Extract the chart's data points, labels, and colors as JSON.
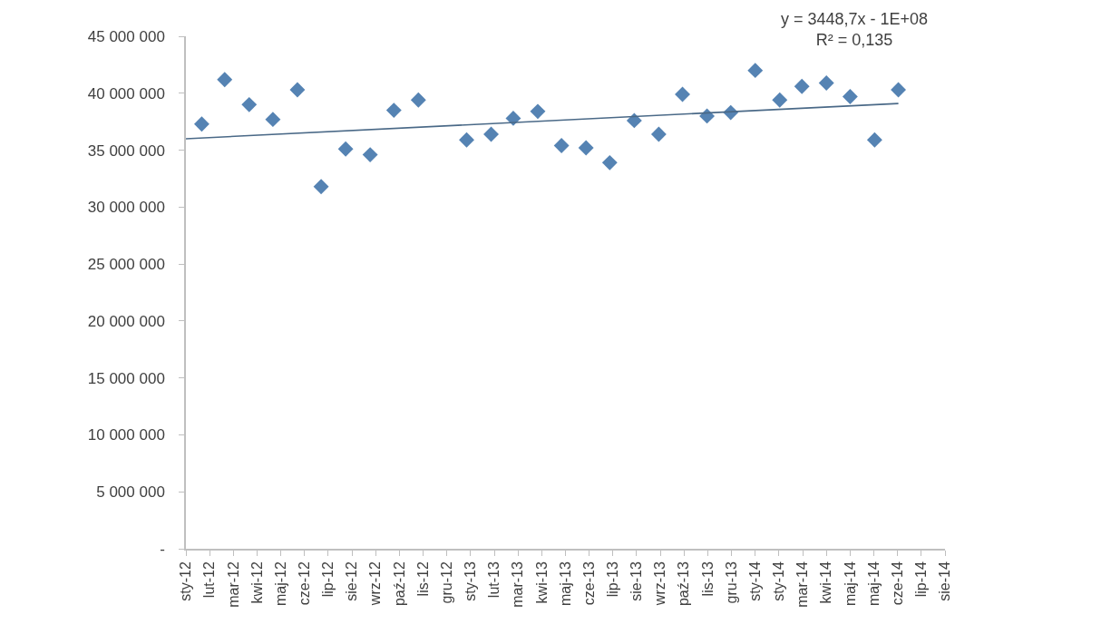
{
  "chart_data": {
    "type": "scatter",
    "marker": "diamond",
    "grid": false,
    "annotations": [
      "y = 3448,7x - 1E+08\nR² = 0,135"
    ],
    "xlim": [
      "2012-01-12",
      "2014-08-29"
    ],
    "xticks": [
      {
        "value": "2012-01-12",
        "label": "sty-12"
      },
      {
        "value": "2012-02-11",
        "label": "lut-12"
      },
      {
        "value": "2012-03-12",
        "label": "mar-12"
      },
      {
        "value": "2012-04-11",
        "label": "kwi-12"
      },
      {
        "value": "2012-05-11",
        "label": "maj-12"
      },
      {
        "value": "2012-06-10",
        "label": "cze-12"
      },
      {
        "value": "2012-07-10",
        "label": "lip-12"
      },
      {
        "value": "2012-08-09",
        "label": "sie-12"
      },
      {
        "value": "2012-09-08",
        "label": "wrz-12"
      },
      {
        "value": "2012-10-08",
        "label": "paź-12"
      },
      {
        "value": "2012-11-07",
        "label": "lis-12"
      },
      {
        "value": "2012-12-07",
        "label": "gru-12"
      },
      {
        "value": "2013-01-06",
        "label": "sty-13"
      },
      {
        "value": "2013-02-05",
        "label": "lut-13"
      },
      {
        "value": "2013-03-07",
        "label": "mar-13"
      },
      {
        "value": "2013-04-06",
        "label": "kwi-13"
      },
      {
        "value": "2013-05-06",
        "label": "maj-13"
      },
      {
        "value": "2013-06-05",
        "label": "cze-13"
      },
      {
        "value": "2013-07-05",
        "label": "lip-13"
      },
      {
        "value": "2013-08-04",
        "label": "sie-13"
      },
      {
        "value": "2013-09-03",
        "label": "wrz-13"
      },
      {
        "value": "2013-10-03",
        "label": "paź-13"
      },
      {
        "value": "2013-11-02",
        "label": "lis-13"
      },
      {
        "value": "2013-12-02",
        "label": "gru-13"
      },
      {
        "value": "2014-01-01",
        "label": "sty-14"
      },
      {
        "value": "2014-01-31",
        "label": "sty-14"
      },
      {
        "value": "2014-03-02",
        "label": "mar-14"
      },
      {
        "value": "2014-04-01",
        "label": "kwi-14"
      },
      {
        "value": "2014-05-01",
        "label": "maj-14"
      },
      {
        "value": "2014-05-31",
        "label": "maj-14"
      },
      {
        "value": "2014-06-30",
        "label": "cze-14"
      },
      {
        "value": "2014-07-30",
        "label": "lip-14"
      },
      {
        "value": "2014-08-29",
        "label": "sie-14"
      }
    ],
    "ylim": [
      0,
      45000000
    ],
    "yticks": [
      {
        "value": 0,
        "label": "-"
      },
      {
        "value": 5000000,
        "label": "5 000 000"
      },
      {
        "value": 10000000,
        "label": "10 000 000"
      },
      {
        "value": 15000000,
        "label": "15 000 000"
      },
      {
        "value": 20000000,
        "label": "20 000 000"
      },
      {
        "value": 25000000,
        "label": "25 000 000"
      },
      {
        "value": 30000000,
        "label": "30 000 000"
      },
      {
        "value": 35000000,
        "label": "35 000 000"
      },
      {
        "value": 40000000,
        "label": "40 000 000"
      },
      {
        "value": 45000000,
        "label": "45 000 000"
      }
    ],
    "series": [
      {
        "color": "#5583b3",
        "x": [
          "2012-02-01",
          "2012-03-01",
          "2012-04-01",
          "2012-05-01",
          "2012-06-01",
          "2012-07-01",
          "2012-08-01",
          "2012-09-01",
          "2012-10-01",
          "2012-11-01",
          "2013-01-01",
          "2013-02-01",
          "2013-03-01",
          "2013-04-01",
          "2013-05-01",
          "2013-06-01",
          "2013-07-01",
          "2013-08-01",
          "2013-09-01",
          "2013-10-01",
          "2013-11-01",
          "2013-12-01",
          "2014-01-01",
          "2014-02-01",
          "2014-03-01",
          "2014-04-01",
          "2014-05-01",
          "2014-06-01",
          "2014-07-01"
        ],
        "values": [
          37300000,
          41200000,
          39000000,
          37700000,
          40300000,
          31800000,
          35100000,
          34600000,
          38500000,
          39400000,
          35900000,
          36400000,
          37800000,
          38400000,
          35400000,
          35200000,
          33900000,
          37600000,
          36400000,
          39900000,
          38000000,
          38300000,
          42000000,
          39400000,
          40600000,
          40900000,
          39700000,
          35900000,
          40300000
        ]
      },
      {
        "type": "line",
        "marker": "none",
        "color": "#4a6987",
        "x": [
          "2012-01-12",
          "2014-07-01"
        ],
        "values": [
          36000000,
          39100000
        ]
      }
    ]
  }
}
